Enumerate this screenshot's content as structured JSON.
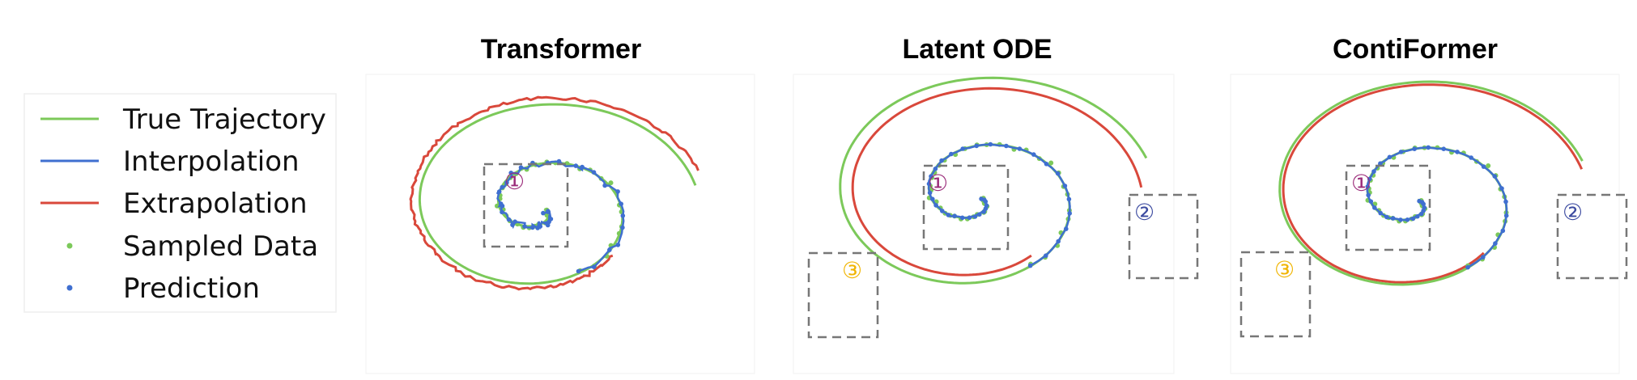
{
  "legend": {
    "items": [
      {
        "label": "True Trajectory",
        "kind": "line",
        "color": "#7cc95a"
      },
      {
        "label": "Interpolation",
        "kind": "line",
        "color": "#3f6fd0"
      },
      {
        "label": "Extrapolation",
        "kind": "line",
        "color": "#d9483b"
      },
      {
        "label": "Sampled Data",
        "kind": "dot",
        "color": "#7cc95a"
      },
      {
        "label": "Prediction",
        "kind": "dot",
        "color": "#3f6fd0"
      }
    ]
  },
  "panels": [
    {
      "title": "Transformer",
      "markers": [
        "①"
      ]
    },
    {
      "title": "Latent ODE",
      "markers": [
        "①",
        "②",
        "③"
      ]
    },
    {
      "title": "ContiFormer",
      "markers": [
        "①",
        "②",
        "③"
      ]
    }
  ],
  "colors": {
    "true_trajectory": "#7cc95a",
    "interpolation": "#3f6fd0",
    "extrapolation": "#d9483b",
    "marker_1": "#9b2c7a",
    "marker_2": "#3b4aa0",
    "marker_3": "#f0b400",
    "box": "#777777"
  }
}
